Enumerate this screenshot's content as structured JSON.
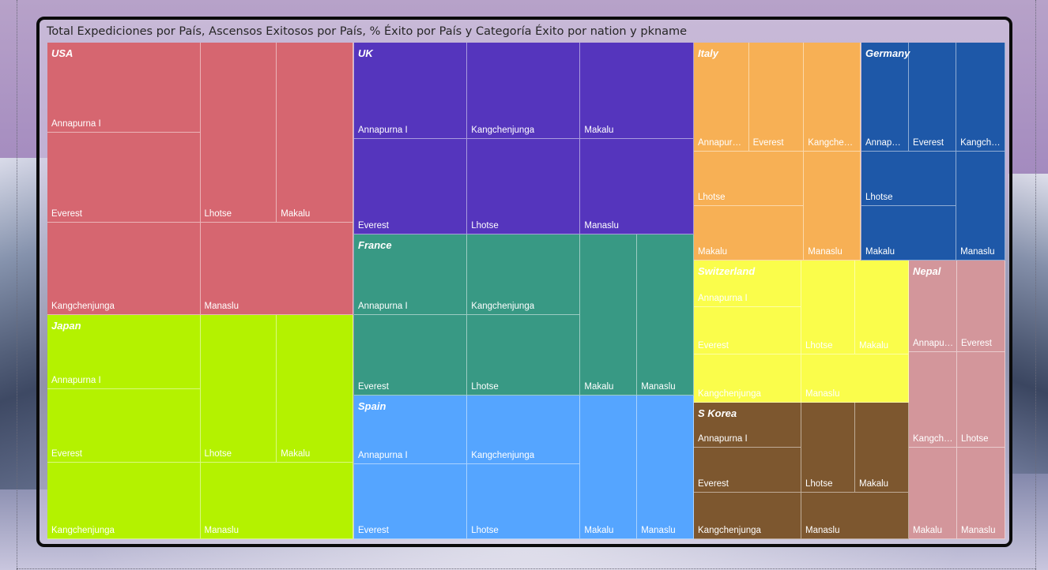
{
  "visual": {
    "title": "Total Expediciones por País, Ascensos Exitosos por País, % Éxito por País y Categoría Éxito por nation y pkname"
  },
  "chart_data": {
    "type": "treemap",
    "title": "Total Expediciones por País, Ascensos Exitosos por País, % Éxito por País y Categoría Éxito por nation y pkname",
    "groups": [
      {
        "nation": "USA",
        "color": "#d66670",
        "peaks": [
          {
            "name": "Annapurna I",
            "value": 9.5
          },
          {
            "name": "Everest",
            "value": 9.5
          },
          {
            "name": "Kangchenjunga",
            "value": 9.5
          },
          {
            "name": "Lhotse",
            "value": 9.2
          },
          {
            "name": "Makalu",
            "value": 9.2
          },
          {
            "name": "Manaslu",
            "value": 8.4
          }
        ]
      },
      {
        "nation": "Japan",
        "color": "#b4f200",
        "peaks": [
          {
            "name": "Annapurna I",
            "value": 6.9
          },
          {
            "name": "Everest",
            "value": 7.0
          },
          {
            "name": "Kangchenjunga",
            "value": 7.0
          },
          {
            "name": "Lhotse",
            "value": 6.9
          },
          {
            "name": "Makalu",
            "value": 6.9
          },
          {
            "name": "Manaslu",
            "value": 7.0
          }
        ]
      },
      {
        "nation": "UK",
        "color": "#5535bd",
        "peaks": [
          {
            "name": "Annapurna I",
            "value": 7.8
          },
          {
            "name": "Kangchenjunga",
            "value": 7.8
          },
          {
            "name": "Makalu",
            "value": 7.8
          },
          {
            "name": "Everest",
            "value": 7.8
          },
          {
            "name": "Lhotse",
            "value": 7.8
          },
          {
            "name": "Manaslu",
            "value": 7.8
          }
        ]
      },
      {
        "nation": "France",
        "color": "#389984",
        "peaks": [
          {
            "name": "Annapurna I",
            "value": 6.4
          },
          {
            "name": "Kangchenjunga",
            "value": 6.4
          },
          {
            "name": "Everest",
            "value": 6.5
          },
          {
            "name": "Lhotse",
            "value": 6.5
          },
          {
            "name": "Makalu",
            "value": 5.9
          },
          {
            "name": "Manaslu",
            "value": 5.9
          }
        ]
      },
      {
        "nation": "Spain",
        "color": "#55a5ff",
        "peaks": [
          {
            "name": "Annapurna I",
            "value": 5.6
          },
          {
            "name": "Kangchenjunga",
            "value": 5.6
          },
          {
            "name": "Everest",
            "value": 5.7
          },
          {
            "name": "Lhotse",
            "value": 5.7
          },
          {
            "name": "Makalu",
            "value": 5.2
          },
          {
            "name": "Manaslu",
            "value": 5.2
          }
        ]
      },
      {
        "nation": "Italy",
        "color": "#f7b055",
        "peaks": [
          {
            "name": "Annapurna I",
            "value": 3.3
          },
          {
            "name": "Everest",
            "value": 3.3
          },
          {
            "name": "Kangchenjunga",
            "value": 3.3
          },
          {
            "name": "Lhotse",
            "value": 2.3
          },
          {
            "name": "Makalu",
            "value": 2.3
          },
          {
            "name": "Manaslu",
            "value": 3.3
          }
        ]
      },
      {
        "nation": "Germany",
        "color": "#1e58a8",
        "peaks": [
          {
            "name": "Annapurna I",
            "value": 2.7
          },
          {
            "name": "Everest",
            "value": 2.7
          },
          {
            "name": "Kangchenjunga",
            "value": 2.7
          },
          {
            "name": "Lhotse",
            "value": 2.0
          },
          {
            "name": "Makalu",
            "value": 2.0
          },
          {
            "name": "Manaslu",
            "value": 2.7
          }
        ]
      },
      {
        "nation": "Switzerland",
        "color": "#fafd4b",
        "peaks": [
          {
            "name": "Annapurna I",
            "value": 2.9
          },
          {
            "name": "Everest",
            "value": 2.9
          },
          {
            "name": "Lhotse",
            "value": 2.8
          },
          {
            "name": "Makalu",
            "value": 2.8
          },
          {
            "name": "Kangchenjunga",
            "value": 2.8
          },
          {
            "name": "Manaslu",
            "value": 2.8
          }
        ]
      },
      {
        "nation": "S Korea",
        "color": "#7d572f",
        "peaks": [
          {
            "name": "Annapurna I",
            "value": 2.9
          },
          {
            "name": "Everest",
            "value": 2.9
          },
          {
            "name": "Lhotse",
            "value": 2.8
          },
          {
            "name": "Makalu",
            "value": 2.8
          },
          {
            "name": "Kangchenjunga",
            "value": 2.8
          },
          {
            "name": "Manaslu",
            "value": 2.8
          }
        ]
      },
      {
        "nation": "Nepal",
        "color": "#d3969b",
        "peaks": [
          {
            "name": "Annapurna I",
            "value": 2.0
          },
          {
            "name": "Everest",
            "value": 2.0
          },
          {
            "name": "Kangchenjunga",
            "value": 2.0
          },
          {
            "name": "Lhotse",
            "value": 2.0
          },
          {
            "name": "Makalu",
            "value": 2.0
          },
          {
            "name": "Manaslu",
            "value": 2.0
          }
        ]
      }
    ]
  }
}
